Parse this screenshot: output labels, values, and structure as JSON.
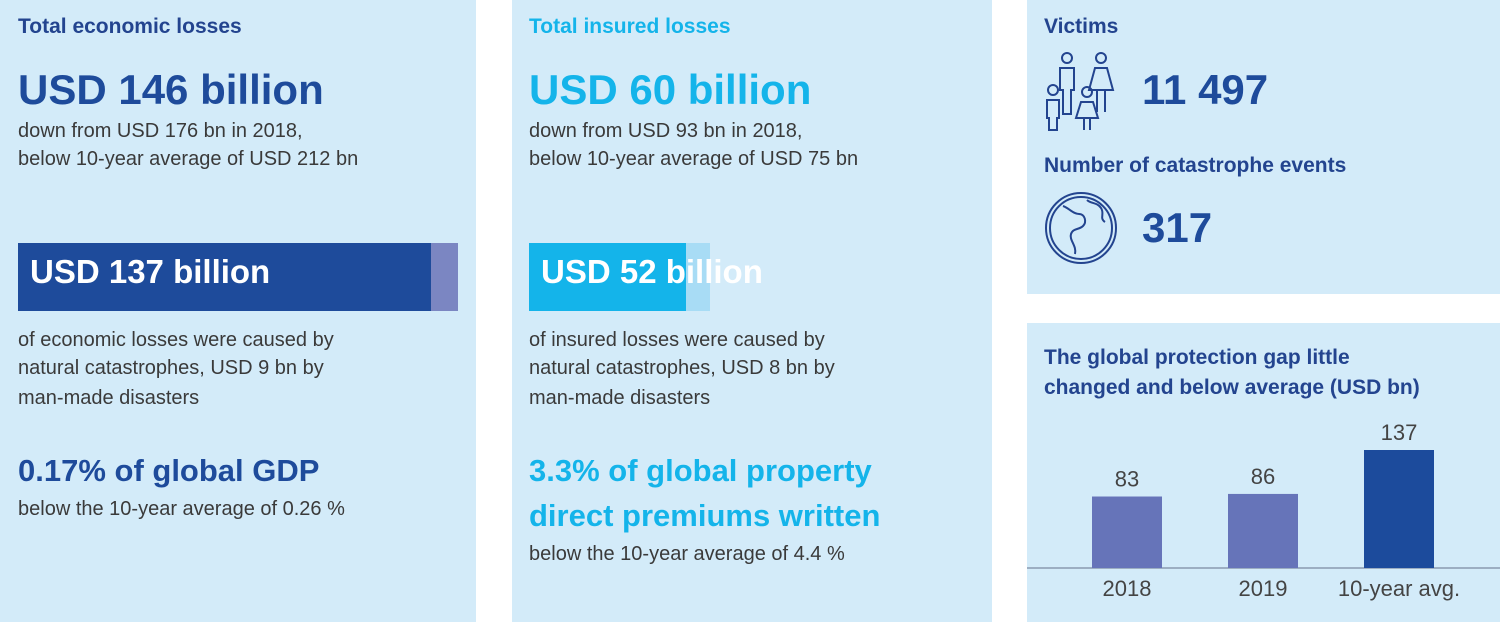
{
  "economic": {
    "label": "Total economic losses",
    "headline": "USD 146 billion",
    "line1": "down from USD 176 bn in 2018,",
    "line2": "below 10-year average of USD 212 bn",
    "bar_label": "USD 137 billion",
    "bar_total": 146,
    "bar_part": 137,
    "desc1": "of economic losses were caused by",
    "desc2": "natural catastrophes, USD 9 bn by",
    "desc3": "man-made disasters",
    "gdp": "0.17% of global GDP",
    "gdp_note": "below the 10-year average of 0.26 %"
  },
  "insured": {
    "label": "Total insured losses",
    "headline": "USD 60 billion",
    "line1": "down from USD 93 bn in 2018,",
    "line2": "below 10-year average of USD 75 bn",
    "bar_label": "USD 52 billion",
    "bar_total": 60,
    "bar_part": 52,
    "desc1": "of insured losses were caused by",
    "desc2": "natural catastrophes, USD 8 bn by",
    "desc3": "man-made disasters",
    "premium1": "3.3% of global property",
    "premium2": "direct premiums written",
    "premium_note": "below the 10-year average of 4.4 %"
  },
  "victims": {
    "label": "Victims",
    "value": "11 497",
    "icon": "people-icon"
  },
  "events": {
    "label": "Number of catastrophe events",
    "value": "317",
    "icon": "globe-icon"
  },
  "colors": {
    "dark_blue": "#1e4b9b",
    "cyan": "#14b4ea",
    "purple": "#6a74b8",
    "panel": "#d3ebf9"
  },
  "chart_data": {
    "type": "bar",
    "title_line1": "The global protection gap little",
    "title_line2": "changed and below average (USD bn)",
    "categories": [
      "2018",
      "2019",
      "10-year avg."
    ],
    "values": [
      83,
      86,
      137
    ],
    "data_labels": [
      "83",
      "86",
      "137"
    ],
    "colors": [
      "#6674b9",
      "#6674b9",
      "#1c4b9c"
    ],
    "ylim": [
      0,
      137
    ],
    "grid": false
  }
}
